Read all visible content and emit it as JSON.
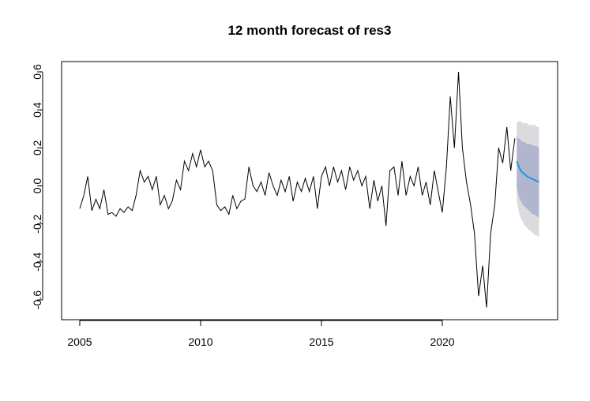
{
  "chart_data": {
    "type": "forecast",
    "title": "12 month forecast of res3",
    "xlim": [
      2004.25,
      2024.77
    ],
    "ylim": [
      -0.704,
      0.654
    ],
    "xticks": [
      2005,
      2010,
      2015,
      2020
    ],
    "yticks": [
      -0.6,
      -0.4,
      -0.2,
      {
        "value": 0,
        "label": "0.0"
      },
      0.2,
      0.4,
      0.6
    ],
    "series": [
      {
        "color": "#000000",
        "x": [
          2005.0,
          2005.17,
          2005.33,
          2005.5,
          2005.67,
          2005.83,
          2006.0,
          2006.17,
          2006.33,
          2006.5,
          2006.67,
          2006.83,
          2007.0,
          2007.17,
          2007.33,
          2007.5,
          2007.67,
          2007.83,
          2008.0,
          2008.17,
          2008.33,
          2008.5,
          2008.67,
          2008.83,
          2009.0,
          2009.17,
          2009.33,
          2009.5,
          2009.67,
          2009.83,
          2010.0,
          2010.17,
          2010.33,
          2010.5,
          2010.67,
          2010.83,
          2011.0,
          2011.17,
          2011.33,
          2011.5,
          2011.67,
          2011.83,
          2012.0,
          2012.17,
          2012.33,
          2012.5,
          2012.67,
          2012.83,
          2013.0,
          2013.17,
          2013.33,
          2013.5,
          2013.67,
          2013.83,
          2014.0,
          2014.17,
          2014.33,
          2014.5,
          2014.67,
          2014.83,
          2015.0,
          2015.17,
          2015.33,
          2015.5,
          2015.67,
          2015.83,
          2016.0,
          2016.17,
          2016.33,
          2016.5,
          2016.67,
          2016.83,
          2017.0,
          2017.17,
          2017.33,
          2017.5,
          2017.67,
          2017.83,
          2018.0,
          2018.17,
          2018.33,
          2018.5,
          2018.67,
          2018.83,
          2019.0,
          2019.17,
          2019.33,
          2019.5,
          2019.67,
          2019.83,
          2020.0,
          2020.17,
          2020.33,
          2020.5,
          2020.67,
          2020.83,
          2021.0,
          2021.17,
          2021.33,
          2021.5,
          2021.67,
          2021.83,
          2022.0,
          2022.17,
          2022.33,
          2022.5,
          2022.67,
          2022.83,
          2023.0
        ],
        "values": [
          -0.12,
          -0.05,
          0.05,
          -0.13,
          -0.07,
          -0.12,
          -0.02,
          -0.15,
          -0.14,
          -0.16,
          -0.12,
          -0.14,
          -0.11,
          -0.13,
          -0.05,
          0.08,
          0.02,
          0.05,
          -0.02,
          0.05,
          -0.1,
          -0.05,
          -0.12,
          -0.08,
          0.03,
          -0.02,
          0.13,
          0.08,
          0.17,
          0.1,
          0.19,
          0.1,
          0.13,
          0.08,
          -0.1,
          -0.13,
          -0.11,
          -0.15,
          -0.05,
          -0.12,
          -0.08,
          -0.07,
          0.1,
          0,
          -0.03,
          0.02,
          -0.05,
          0.07,
          0,
          -0.05,
          0.03,
          -0.03,
          0.05,
          -0.08,
          0.02,
          -0.03,
          0.04,
          -0.03,
          0.05,
          -0.12,
          0.05,
          0.1,
          0,
          0.1,
          0.02,
          0.08,
          -0.02,
          0.1,
          0.03,
          0.08,
          0,
          0.05,
          -0.12,
          0.03,
          -0.08,
          0,
          -0.21,
          0.08,
          0.1,
          -0.05,
          0.13,
          -0.05,
          0.05,
          0,
          0.1,
          -0.05,
          0.02,
          -0.1,
          0.08,
          -0.03,
          -0.14,
          0.1,
          0.47,
          0.2,
          0.6,
          0.2,
          0.02,
          -0.1,
          -0.25,
          -0.58,
          -0.42,
          -0.64,
          -0.25,
          -0.1,
          0.2,
          0.12,
          0.31,
          0.08,
          0.25
        ]
      }
    ],
    "forecast": {
      "x": [
        2023.08,
        2023.17,
        2023.25,
        2023.33,
        2023.42,
        2023.5,
        2023.58,
        2023.67,
        2023.75,
        2023.83,
        2023.92,
        2024.0
      ],
      "mean": [
        0.13,
        0.1,
        0.08,
        0.07,
        0.06,
        0.05,
        0.045,
        0.04,
        0.035,
        0.03,
        0.025,
        0.02
      ],
      "lo80": [
        -0.01,
        -0.06,
        -0.08,
        -0.1,
        -0.11,
        -0.12,
        -0.13,
        -0.14,
        -0.15,
        -0.15,
        -0.16,
        -0.17
      ],
      "hi80": [
        0.26,
        0.25,
        0.24,
        0.23,
        0.23,
        0.22,
        0.22,
        0.22,
        0.21,
        0.21,
        0.21,
        0.2
      ],
      "lo95": [
        -0.08,
        -0.14,
        -0.17,
        -0.19,
        -0.21,
        -0.22,
        -0.23,
        -0.24,
        -0.25,
        -0.26,
        -0.26,
        -0.27
      ],
      "hi95": [
        0.33,
        0.34,
        0.34,
        0.33,
        0.33,
        0.33,
        0.32,
        0.32,
        0.32,
        0.32,
        0.31,
        0.31
      ],
      "color": "#2297e6",
      "color80": "#b1b5ce",
      "color95": "#dbdbdf"
    }
  }
}
